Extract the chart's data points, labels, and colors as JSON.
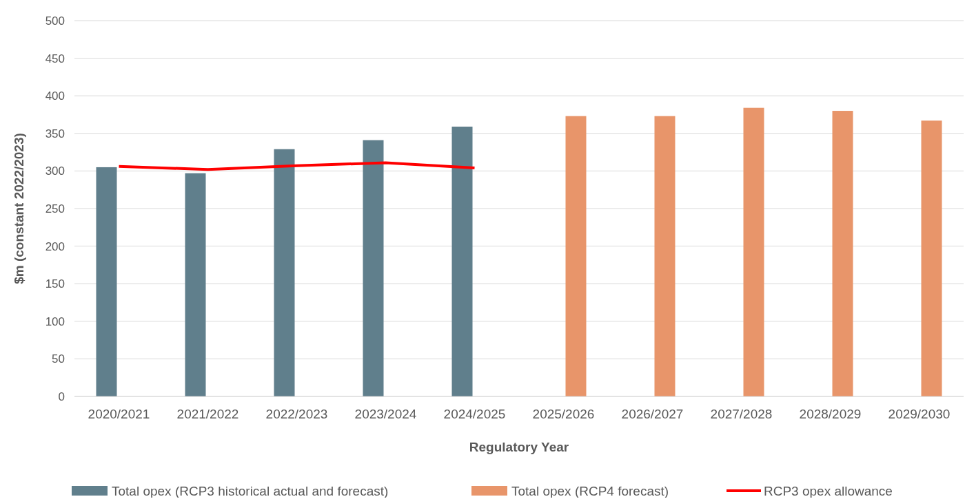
{
  "chart_data": {
    "type": "bar",
    "xlabel": "Regulatory Year",
    "ylabel": "$m (constant 2022/2023)",
    "categories": [
      "2020/2021",
      "2021/2022",
      "2022/2023",
      "2023/2024",
      "2024/2025",
      "2025/2026",
      "2026/2027",
      "2027/2028",
      "2028/2029",
      "2029/2030"
    ],
    "series": [
      {
        "name": "Total opex (RCP3 historical actual and forecast)",
        "color": "#607f8c",
        "values": [
          305,
          297,
          329,
          341,
          359,
          null,
          null,
          null,
          null,
          null
        ]
      },
      {
        "name": "Total opex (RCP4 forecast)",
        "color": "#e8956a",
        "values": [
          null,
          null,
          null,
          null,
          null,
          373,
          373,
          384,
          380,
          367
        ]
      },
      {
        "name": "RCP3 opex allowance",
        "type": "line",
        "color": "#ff0000",
        "values": [
          306,
          302,
          307,
          311,
          304,
          null,
          null,
          null,
          null,
          null
        ]
      }
    ],
    "ylim": [
      0,
      500
    ],
    "yticks": [
      0,
      50,
      100,
      150,
      200,
      250,
      300,
      350,
      400,
      450,
      500
    ],
    "grid": "y",
    "legend": "bottom"
  }
}
